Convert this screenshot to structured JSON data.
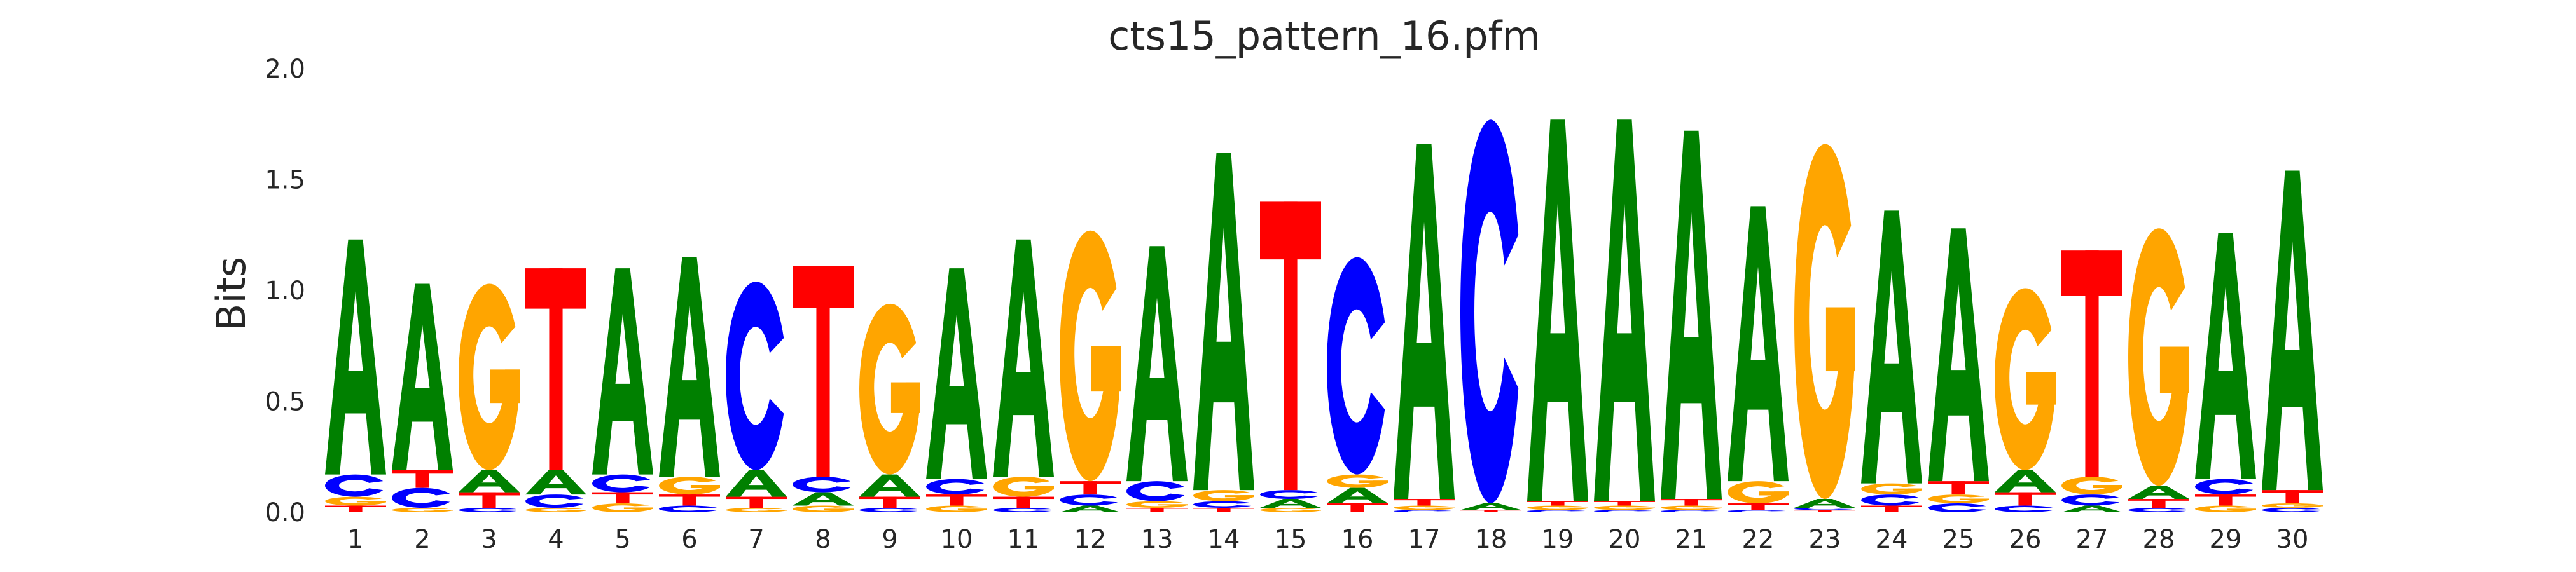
{
  "chart_data": {
    "type": "sequence-logo",
    "title": "cts15_pattern_16.pfm",
    "ylabel": "Bits",
    "xlabel": "",
    "ylim": [
      0,
      2.0
    ],
    "yticks": [
      "0.0",
      "0.5",
      "1.0",
      "1.5",
      "2.0"
    ],
    "ytick_values": [
      0,
      0.5,
      1.0,
      1.5,
      2.0
    ],
    "colors": {
      "A": "#008000",
      "C": "#0000ff",
      "G": "#ffa500",
      "T": "#ff0000"
    },
    "positions": [
      {
        "label": "1",
        "stack": [
          {
            "b": "T",
            "h": 0.03
          },
          {
            "b": "G",
            "h": 0.04
          },
          {
            "b": "C",
            "h": 0.1
          },
          {
            "b": "A",
            "h": 1.06
          }
        ]
      },
      {
        "label": "2",
        "stack": [
          {
            "b": "G",
            "h": 0.02
          },
          {
            "b": "C",
            "h": 0.09
          },
          {
            "b": "T",
            "h": 0.08
          },
          {
            "b": "A",
            "h": 0.84
          }
        ]
      },
      {
        "label": "3",
        "stack": [
          {
            "b": "C",
            "h": 0.02
          },
          {
            "b": "T",
            "h": 0.07
          },
          {
            "b": "A",
            "h": 0.1
          },
          {
            "b": "G",
            "h": 0.84
          }
        ]
      },
      {
        "label": "4",
        "stack": [
          {
            "b": "G",
            "h": 0.02
          },
          {
            "b": "C",
            "h": 0.06
          },
          {
            "b": "A",
            "h": 0.11
          },
          {
            "b": "T",
            "h": 0.91
          }
        ]
      },
      {
        "label": "5",
        "stack": [
          {
            "b": "G",
            "h": 0.04
          },
          {
            "b": "T",
            "h": 0.05
          },
          {
            "b": "C",
            "h": 0.08
          },
          {
            "b": "A",
            "h": 0.93
          }
        ]
      },
      {
        "label": "6",
        "stack": [
          {
            "b": "C",
            "h": 0.03
          },
          {
            "b": "T",
            "h": 0.05
          },
          {
            "b": "G",
            "h": 0.08
          },
          {
            "b": "A",
            "h": 0.99
          }
        ]
      },
      {
        "label": "7",
        "stack": [
          {
            "b": "G",
            "h": 0.02
          },
          {
            "b": "T",
            "h": 0.05
          },
          {
            "b": "A",
            "h": 0.12
          },
          {
            "b": "C",
            "h": 0.85
          }
        ]
      },
      {
        "label": "8",
        "stack": [
          {
            "b": "G",
            "h": 0.03
          },
          {
            "b": "A",
            "h": 0.06
          },
          {
            "b": "C",
            "h": 0.07
          },
          {
            "b": "T",
            "h": 0.95
          }
        ]
      },
      {
        "label": "9",
        "stack": [
          {
            "b": "C",
            "h": 0.02
          },
          {
            "b": "T",
            "h": 0.05
          },
          {
            "b": "A",
            "h": 0.1
          },
          {
            "b": "G",
            "h": 0.77
          }
        ]
      },
      {
        "label": "10",
        "stack": [
          {
            "b": "G",
            "h": 0.03
          },
          {
            "b": "T",
            "h": 0.05
          },
          {
            "b": "C",
            "h": 0.07
          },
          {
            "b": "A",
            "h": 0.95
          }
        ]
      },
      {
        "label": "11",
        "stack": [
          {
            "b": "C",
            "h": 0.02
          },
          {
            "b": "T",
            "h": 0.05
          },
          {
            "b": "G",
            "h": 0.09
          },
          {
            "b": "A",
            "h": 1.07
          }
        ]
      },
      {
        "label": "12",
        "stack": [
          {
            "b": "A",
            "h": 0.03
          },
          {
            "b": "C",
            "h": 0.05
          },
          {
            "b": "T",
            "h": 0.06
          },
          {
            "b": "G",
            "h": 1.13
          }
        ]
      },
      {
        "label": "13",
        "stack": [
          {
            "b": "T",
            "h": 0.02
          },
          {
            "b": "G",
            "h": 0.03
          },
          {
            "b": "C",
            "h": 0.09
          },
          {
            "b": "A",
            "h": 1.06
          }
        ]
      },
      {
        "label": "14",
        "stack": [
          {
            "b": "T",
            "h": 0.02
          },
          {
            "b": "C",
            "h": 0.03
          },
          {
            "b": "G",
            "h": 0.05
          },
          {
            "b": "A",
            "h": 1.52
          }
        ]
      },
      {
        "label": "15",
        "stack": [
          {
            "b": "G",
            "h": 0.02
          },
          {
            "b": "A",
            "h": 0.04
          },
          {
            "b": "C",
            "h": 0.04
          },
          {
            "b": "T",
            "h": 1.3
          }
        ]
      },
      {
        "label": "16",
        "stack": [
          {
            "b": "T",
            "h": 0.04
          },
          {
            "b": "A",
            "h": 0.07
          },
          {
            "b": "G",
            "h": 0.06
          },
          {
            "b": "C",
            "h": 0.98
          }
        ]
      },
      {
        "label": "17",
        "stack": [
          {
            "b": "C",
            "h": 0.01
          },
          {
            "b": "G",
            "h": 0.02
          },
          {
            "b": "T",
            "h": 0.03
          },
          {
            "b": "A",
            "h": 1.6
          }
        ]
      },
      {
        "label": "18",
        "stack": [
          {
            "b": "T",
            "h": 0.01
          },
          {
            "b": "A",
            "h": 0.03
          },
          {
            "b": "C",
            "h": 1.73
          }
        ]
      },
      {
        "label": "19",
        "stack": [
          {
            "b": "C",
            "h": 0.01
          },
          {
            "b": "G",
            "h": 0.02
          },
          {
            "b": "T",
            "h": 0.02
          },
          {
            "b": "A",
            "h": 1.72
          }
        ]
      },
      {
        "label": "20",
        "stack": [
          {
            "b": "C",
            "h": 0.01
          },
          {
            "b": "G",
            "h": 0.02
          },
          {
            "b": "T",
            "h": 0.02
          },
          {
            "b": "A",
            "h": 1.72
          }
        ]
      },
      {
        "label": "21",
        "stack": [
          {
            "b": "C",
            "h": 0.01
          },
          {
            "b": "G",
            "h": 0.02
          },
          {
            "b": "T",
            "h": 0.03
          },
          {
            "b": "A",
            "h": 1.66
          }
        ]
      },
      {
        "label": "22",
        "stack": [
          {
            "b": "C",
            "h": 0.01
          },
          {
            "b": "T",
            "h": 0.03
          },
          {
            "b": "G",
            "h": 0.1
          },
          {
            "b": "A",
            "h": 1.24
          }
        ]
      },
      {
        "label": "23",
        "stack": [
          {
            "b": "T",
            "h": 0.01
          },
          {
            "b": "C",
            "h": 0.01
          },
          {
            "b": "A",
            "h": 0.04
          },
          {
            "b": "G",
            "h": 1.6
          }
        ]
      },
      {
        "label": "24",
        "stack": [
          {
            "b": "T",
            "h": 0.03
          },
          {
            "b": "C",
            "h": 0.05
          },
          {
            "b": "G",
            "h": 0.05
          },
          {
            "b": "A",
            "h": 1.23
          }
        ]
      },
      {
        "label": "25",
        "stack": [
          {
            "b": "C",
            "h": 0.04
          },
          {
            "b": "G",
            "h": 0.04
          },
          {
            "b": "T",
            "h": 0.06
          },
          {
            "b": "A",
            "h": 1.14
          }
        ]
      },
      {
        "label": "26",
        "stack": [
          {
            "b": "C",
            "h": 0.03
          },
          {
            "b": "T",
            "h": 0.06
          },
          {
            "b": "A",
            "h": 0.1
          },
          {
            "b": "G",
            "h": 0.82
          }
        ]
      },
      {
        "label": "27",
        "stack": [
          {
            "b": "A",
            "h": 0.03
          },
          {
            "b": "C",
            "h": 0.05
          },
          {
            "b": "G",
            "h": 0.08
          },
          {
            "b": "T",
            "h": 1.02
          }
        ]
      },
      {
        "label": "28",
        "stack": [
          {
            "b": "C",
            "h": 0.02
          },
          {
            "b": "T",
            "h": 0.04
          },
          {
            "b": "A",
            "h": 0.06
          },
          {
            "b": "G",
            "h": 1.16
          }
        ]
      },
      {
        "label": "29",
        "stack": [
          {
            "b": "G",
            "h": 0.03
          },
          {
            "b": "T",
            "h": 0.05
          },
          {
            "b": "C",
            "h": 0.07
          },
          {
            "b": "A",
            "h": 1.11
          }
        ]
      },
      {
        "label": "30",
        "stack": [
          {
            "b": "C",
            "h": 0.02
          },
          {
            "b": "G",
            "h": 0.02
          },
          {
            "b": "T",
            "h": 0.06
          },
          {
            "b": "A",
            "h": 1.44
          }
        ]
      }
    ]
  }
}
